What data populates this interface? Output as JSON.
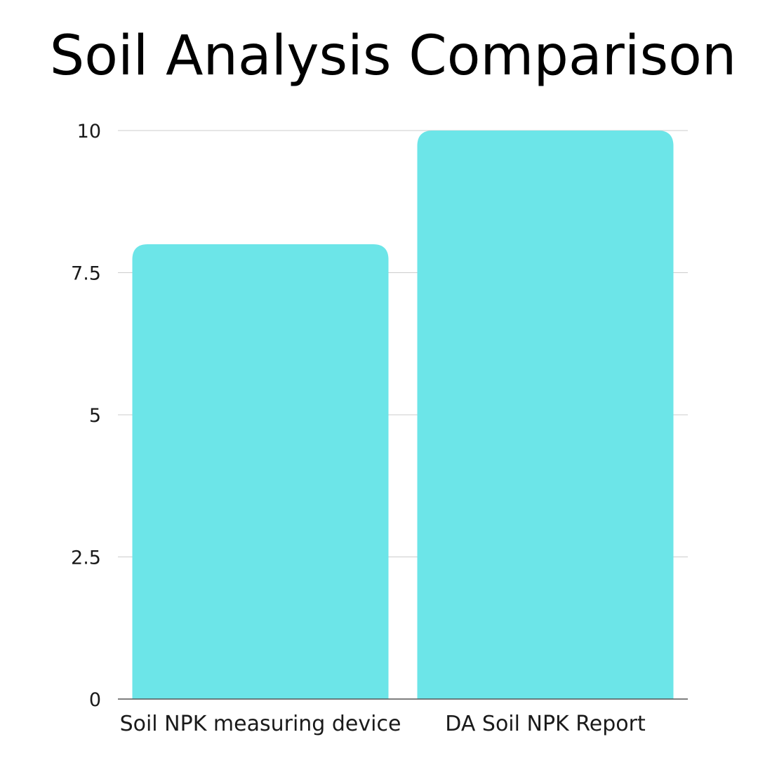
{
  "chart_data": {
    "type": "bar",
    "title": "Soil Analysis Comparison",
    "xlabel": "",
    "ylabel": "",
    "categories": [
      "Soil NPK measuring device",
      "DA Soil NPK Report"
    ],
    "values": [
      8,
      10
    ],
    "ylim": [
      0,
      10
    ],
    "yticks": [
      0,
      2.5,
      5,
      7.5,
      10
    ],
    "ytick_labels": [
      "0",
      "2.5",
      "5",
      "7.5",
      "10"
    ],
    "grid": true,
    "legend": "none",
    "bar_color": "#6ce5e8",
    "grid_color": "#cccccc",
    "axis_color": "#555555"
  }
}
